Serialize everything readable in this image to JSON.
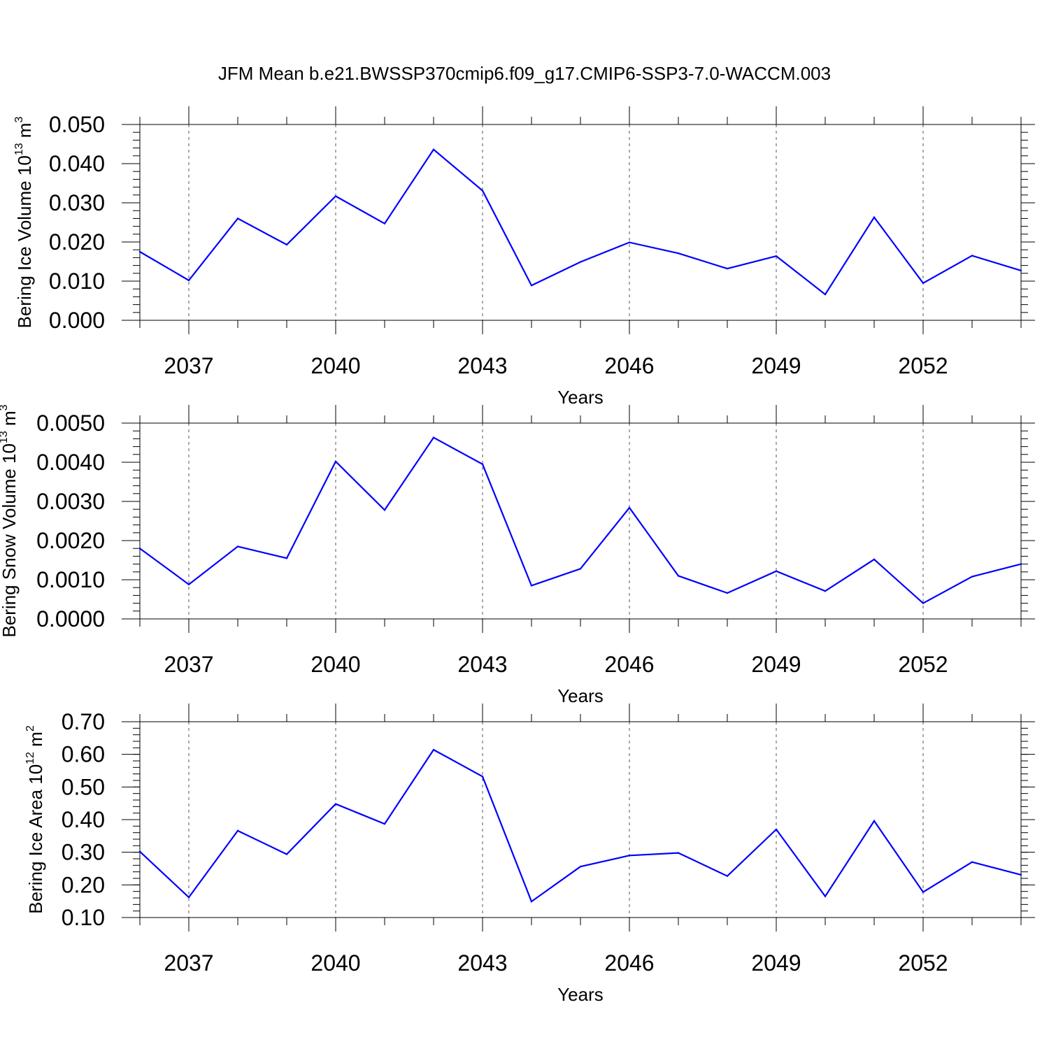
{
  "title": "JFM Mean b.e21.BWSSP370cmip6.f09_g17.CMIP6-SSP3-7.0-WACCM.003",
  "line_color": "#0000ff",
  "chart_data": [
    {
      "type": "line",
      "xlabel": "Years",
      "ylabel": {
        "text": "Bering Ice Volume 10",
        "sup": "13",
        "unit": " m",
        "unit_sup": "3"
      },
      "x": [
        2036,
        2037,
        2038,
        2039,
        2040,
        2041,
        2042,
        2043,
        2044,
        2045,
        2046,
        2047,
        2048,
        2049,
        2050,
        2051,
        2052,
        2053,
        2054
      ],
      "series": [
        {
          "values": [
            0.0175,
            0.0102,
            0.026,
            0.0193,
            0.0317,
            0.0247,
            0.0436,
            0.0331,
            0.0089,
            0.0149,
            0.0199,
            0.0171,
            0.0132,
            0.0164,
            0.0066,
            0.0263,
            0.0095,
            0.0165,
            0.0127
          ]
        }
      ],
      "xlim": [
        2036,
        2054
      ],
      "ylim": [
        0.0,
        0.05
      ],
      "xticks": [
        "2037",
        "2040",
        "2043",
        "2046",
        "2049",
        "2052"
      ],
      "yticks": [
        "0.000",
        "0.010",
        "0.020",
        "0.030",
        "0.040",
        "0.050"
      ],
      "grid": "vertical dashed"
    },
    {
      "type": "line",
      "xlabel": "Years",
      "ylabel": {
        "text": "Bering Snow Volume 10",
        "sup": "13",
        "unit": " m",
        "unit_sup": "3"
      },
      "x": [
        2036,
        2037,
        2038,
        2039,
        2040,
        2041,
        2042,
        2043,
        2044,
        2045,
        2046,
        2047,
        2048,
        2049,
        2050,
        2051,
        2052,
        2053,
        2054
      ],
      "series": [
        {
          "values": [
            0.0018,
            0.00088,
            0.00185,
            0.00155,
            0.00402,
            0.00278,
            0.00463,
            0.00395,
            0.00085,
            0.00128,
            0.00284,
            0.0011,
            0.00066,
            0.00122,
            0.00071,
            0.00152,
            0.0004,
            0.00108,
            0.0014
          ]
        }
      ],
      "xlim": [
        2036,
        2054
      ],
      "ylim": [
        0.0,
        0.005
      ],
      "xticks": [
        "2037",
        "2040",
        "2043",
        "2046",
        "2049",
        "2052"
      ],
      "yticks": [
        "0.0000",
        "0.0010",
        "0.0020",
        "0.0030",
        "0.0040",
        "0.0050"
      ],
      "grid": "vertical dashed"
    },
    {
      "type": "line",
      "xlabel": "Years",
      "ylabel": {
        "text": "Bering Ice Area 10",
        "sup": "12",
        "unit": " m",
        "unit_sup": "2"
      },
      "x": [
        2036,
        2037,
        2038,
        2039,
        2040,
        2041,
        2042,
        2043,
        2044,
        2045,
        2046,
        2047,
        2048,
        2049,
        2050,
        2051,
        2052,
        2053,
        2054
      ],
      "series": [
        {
          "values": [
            0.302,
            0.162,
            0.366,
            0.294,
            0.448,
            0.387,
            0.614,
            0.532,
            0.149,
            0.256,
            0.29,
            0.298,
            0.227,
            0.37,
            0.165,
            0.396,
            0.178,
            0.27,
            0.231
          ]
        }
      ],
      "xlim": [
        2036,
        2054
      ],
      "ylim": [
        0.1,
        0.7
      ],
      "xticks": [
        "2037",
        "2040",
        "2043",
        "2046",
        "2049",
        "2052"
      ],
      "yticks": [
        "0.10",
        "0.20",
        "0.30",
        "0.40",
        "0.50",
        "0.60",
        "0.70"
      ],
      "grid": "vertical dashed"
    }
  ]
}
